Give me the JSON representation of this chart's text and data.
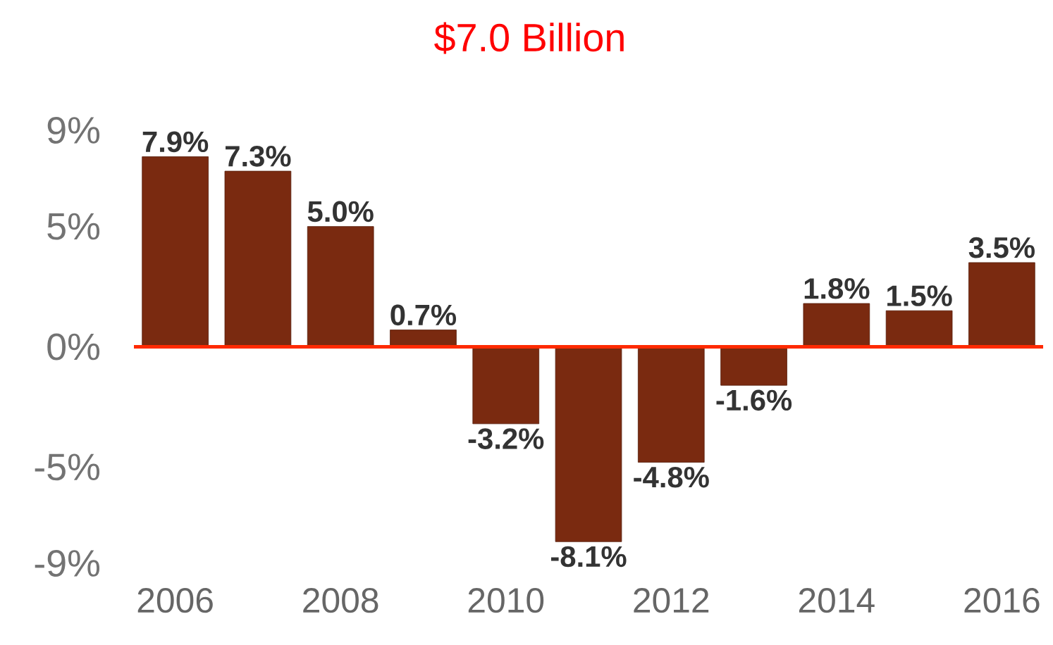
{
  "chart_data": {
    "type": "bar",
    "annotations": [
      "$7.0 Billion"
    ],
    "categories": [
      "2006",
      null,
      "2008",
      null,
      "2010",
      null,
      "2012",
      null,
      "2014",
      null,
      "2016"
    ],
    "values": [
      7.9,
      7.3,
      5.0,
      0.7,
      -3.2,
      -8.1,
      -4.8,
      -1.6,
      1.8,
      1.5,
      3.5
    ],
    "value_labels": [
      "7.9%",
      "7.3%",
      "5.0%",
      "0.7%",
      "-3.2%",
      "-8.1%",
      "-4.8%",
      "-1.6%",
      "1.8%",
      "1.5%",
      "3.5%"
    ],
    "color": "#7a2a10",
    "ylim": [
      -9,
      9
    ],
    "yticks": [
      {
        "value": -9,
        "label": "-9%"
      },
      {
        "value": -5,
        "label": "-5%"
      },
      {
        "value": 0,
        "label": "0%"
      },
      {
        "value": 5,
        "label": "5%"
      },
      {
        "value": 9,
        "label": "9%"
      }
    ],
    "ref_lines": [
      {
        "axis": "y",
        "value": 0,
        "color": "#ff2a00"
      }
    ]
  }
}
